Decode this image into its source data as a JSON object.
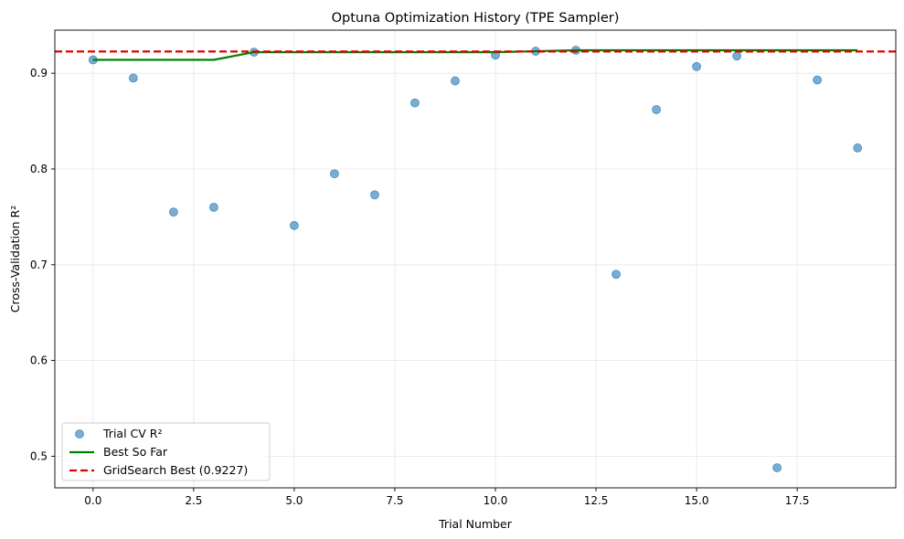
{
  "chart_data": {
    "type": "scatter",
    "title": "Optuna Optimization History (TPE Sampler)",
    "xlabel": "Trial Number",
    "ylabel": "Cross-Validation R²",
    "xlim": [
      -0.95,
      19.95
    ],
    "ylim": [
      0.467,
      0.945
    ],
    "xticks": [
      0.0,
      2.5,
      5.0,
      7.5,
      10.0,
      12.5,
      15.0,
      17.5
    ],
    "xtick_labels": [
      "0.0",
      "2.5",
      "5.0",
      "7.5",
      "10.0",
      "12.5",
      "15.0",
      "17.5"
    ],
    "yticks": [
      0.5,
      0.6,
      0.7,
      0.8,
      0.9
    ],
    "ytick_labels": [
      "0.5",
      "0.6",
      "0.7",
      "0.8",
      "0.9"
    ],
    "grid": true,
    "legend_position": "lower-left",
    "series": [
      {
        "name": "Trial CV R²",
        "kind": "scatter",
        "color": "#1f77b4",
        "x": [
          0,
          1,
          2,
          3,
          4,
          5,
          6,
          7,
          8,
          9,
          10,
          11,
          12,
          13,
          14,
          15,
          16,
          17,
          18,
          19
        ],
        "y": [
          0.914,
          0.895,
          0.755,
          0.76,
          0.922,
          0.741,
          0.795,
          0.773,
          0.869,
          0.892,
          0.919,
          0.923,
          0.924,
          0.69,
          0.862,
          0.907,
          0.918,
          0.488,
          0.893,
          0.822
        ]
      },
      {
        "name": "Best So Far",
        "kind": "line",
        "color": "#008000",
        "x": [
          0,
          1,
          2,
          3,
          4,
          5,
          6,
          7,
          8,
          9,
          10,
          11,
          12,
          13,
          14,
          15,
          16,
          17,
          18,
          19
        ],
        "y": [
          0.914,
          0.914,
          0.914,
          0.914,
          0.922,
          0.922,
          0.922,
          0.922,
          0.922,
          0.922,
          0.922,
          0.923,
          0.924,
          0.924,
          0.924,
          0.924,
          0.924,
          0.924,
          0.924,
          0.924
        ]
      },
      {
        "name": "GridSearch Best (0.9227)",
        "kind": "hline",
        "color": "#dd0000",
        "y": 0.9227
      }
    ]
  }
}
